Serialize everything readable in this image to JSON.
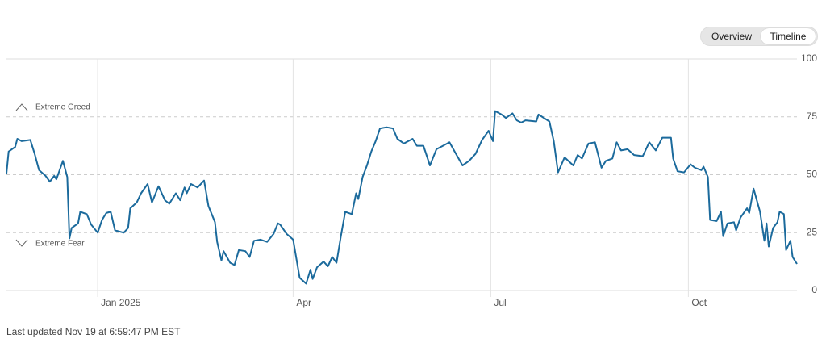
{
  "buttons": [
    "Overview",
    "Timeline"
  ],
  "footer": "Last updated Nov 19 at 6:59:47 PM EST",
  "chart_data": {
    "type": "line",
    "zones": [
      "Extreme Greed",
      "Extreme Fear"
    ],
    "color": "#1b6a9c",
    "xlim": [
      0,
      364
    ],
    "xticks": [
      {
        "value": 42,
        "label": "Jan 2025"
      },
      {
        "value": 132,
        "label": "Apr"
      },
      {
        "value": 223,
        "label": "Jul"
      },
      {
        "value": 314,
        "label": "Oct"
      }
    ],
    "ylim": [
      0,
      100
    ],
    "yticks": [
      0,
      25,
      50,
      75,
      100
    ],
    "grid": true,
    "x": [
      0,
      1,
      4,
      5,
      7,
      11,
      13,
      15,
      18,
      20,
      22,
      23,
      26,
      28,
      29,
      30,
      33,
      34,
      37,
      39,
      42,
      44,
      46,
      48,
      50,
      54,
      56,
      57,
      60,
      62,
      65,
      67,
      70,
      73,
      75,
      78,
      80,
      82,
      83,
      85,
      88,
      91,
      93,
      96,
      97,
      99,
      100,
      103,
      105,
      107,
      110,
      112,
      114,
      117,
      120,
      123,
      125,
      126,
      129,
      132,
      135,
      138,
      140,
      141,
      143,
      146,
      148,
      150,
      152,
      154,
      156,
      159,
      161,
      162,
      164,
      166,
      168,
      170,
      172,
      175,
      178,
      180,
      183,
      187,
      189,
      192,
      195,
      198,
      201,
      204,
      207,
      210,
      213,
      216,
      219,
      222,
      224,
      225,
      228,
      230,
      233,
      235,
      237,
      239,
      244,
      245,
      250,
      252,
      254,
      257,
      261,
      263,
      265,
      268,
      271,
      274,
      276,
      279,
      281,
      283,
      286,
      289,
      293,
      296,
      299,
      302,
      306,
      307,
      309,
      312,
      315,
      317,
      320,
      321,
      323,
      324,
      327,
      329,
      330,
      332,
      335,
      336,
      338,
      341,
      342,
      344,
      347,
      349,
      350,
      351,
      353,
      355,
      356,
      358,
      359,
      361,
      362,
      364
    ],
    "values": [
      50.5,
      60,
      62,
      65.5,
      64.5,
      65,
      59,
      52,
      49.5,
      47,
      49.5,
      48,
      56,
      49,
      22.5,
      27,
      29,
      34,
      33,
      28.5,
      25,
      30.5,
      33.5,
      34,
      26,
      25,
      27,
      35.5,
      38,
      42,
      46,
      38,
      45,
      39,
      37.5,
      42,
      39,
      44.5,
      42,
      46,
      44.5,
      47.5,
      36.5,
      29.5,
      21,
      13,
      17,
      12,
      11,
      17.5,
      17,
      14.5,
      21.5,
      22,
      21,
      24.5,
      29,
      28.5,
      24.5,
      22,
      5.5,
      3,
      9,
      5,
      10,
      12.5,
      10.5,
      14.5,
      12,
      23.5,
      34,
      33,
      42,
      39.5,
      49,
      54,
      60,
      64.5,
      70,
      70.5,
      70,
      65.5,
      63.5,
      65.5,
      62.5,
      62.5,
      54,
      61,
      62.5,
      64,
      59,
      54,
      56,
      59,
      65,
      69,
      64.5,
      77.5,
      76,
      74.5,
      76.5,
      73.5,
      72.5,
      73.5,
      73,
      76,
      73,
      64.5,
      51,
      57.5,
      54,
      58.5,
      57,
      63.5,
      64,
      53,
      56,
      57,
      64,
      60.5,
      61,
      58.5,
      58,
      64,
      60.5,
      66,
      66,
      57,
      51.5,
      51,
      54.5,
      53,
      52,
      53.5,
      49,
      30.5,
      30,
      34,
      23.5,
      29,
      29.5,
      26,
      31.5,
      35.5,
      33.5,
      44,
      34,
      21.5,
      29,
      19,
      27,
      29.5,
      34,
      33,
      17.5,
      21.5,
      14.5,
      11.5
    ]
  }
}
